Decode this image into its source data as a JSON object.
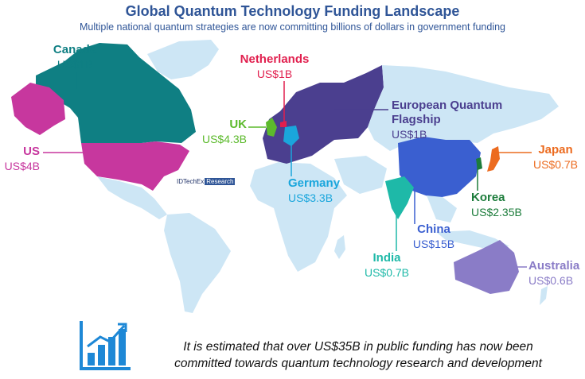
{
  "title": "Global Quantum Technology Funding Landscape",
  "subtitle": "Multiple national quantum strategies are now committing billions of dollars in government funding",
  "brand": {
    "name": "IDTechEx",
    "tag": "Research"
  },
  "statement": {
    "line1": "It is estimated that over US$35B in public funding has now been",
    "line2": "committed towards quantum technology research and development"
  },
  "icon": "bar-chart-growth-icon",
  "colors": {
    "canada": "#0f7f83",
    "us": "#c7379e",
    "netherlands": "#e11f4e",
    "uk": "#5cba2c",
    "germany": "#1aa6dc",
    "eu": "#4b3f8f",
    "japan": "#ec6b1f",
    "korea": "#1c7c3b",
    "china": "#3a5fd0",
    "india": "#1eb9a8",
    "australia": "#8a7cc7",
    "land": "#cde6f5"
  },
  "regions": [
    {
      "key": "canada",
      "country": "Canada",
      "value": "US$1B",
      "color": "#0f7f83"
    },
    {
      "key": "us",
      "country": "US",
      "value": "US$4B",
      "color": "#c7379e"
    },
    {
      "key": "netherlands",
      "country": "Netherlands",
      "value": "US$1B",
      "color": "#e11f4e"
    },
    {
      "key": "uk",
      "country": "UK",
      "value": "US$4.3B",
      "color": "#5cba2c"
    },
    {
      "key": "germany",
      "country": "Germany",
      "value": "US$3.3B",
      "color": "#1aa6dc"
    },
    {
      "key": "eu",
      "country": "European Quantum Flagship",
      "value": "US$1B",
      "color": "#4b3f8f"
    },
    {
      "key": "japan",
      "country": "Japan",
      "value": "US$0.7B",
      "color": "#ec6b1f"
    },
    {
      "key": "korea",
      "country": "Korea",
      "value": "US$2.35B",
      "color": "#1c7c3b"
    },
    {
      "key": "china",
      "country": "China",
      "value": "US$15B",
      "color": "#3a5fd0"
    },
    {
      "key": "india",
      "country": "India",
      "value": "US$0.7B",
      "color": "#1eb9a8"
    },
    {
      "key": "australia",
      "country": "Australia",
      "value": "US$0.6B",
      "color": "#8a7cc7"
    }
  ]
}
